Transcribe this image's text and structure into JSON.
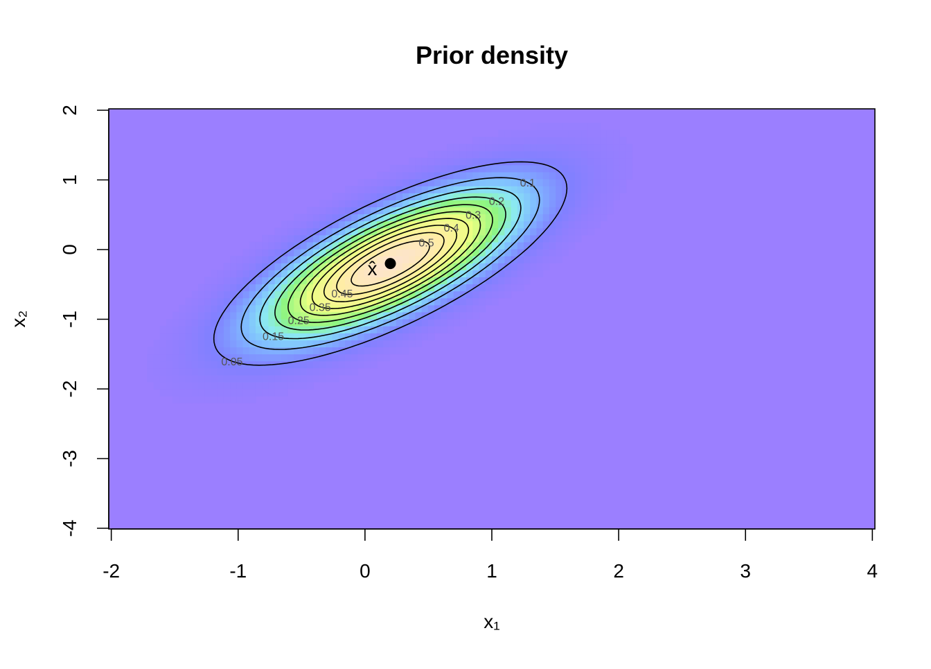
{
  "chart_data": {
    "type": "contour",
    "title": "Prior density",
    "xlabel": "x₁",
    "ylabel": "x₂",
    "xlim": [
      -2.02,
      4.02
    ],
    "ylim": [
      -4.01,
      2.02
    ],
    "xticks": [
      -2,
      -1,
      0,
      1,
      2,
      3,
      4
    ],
    "yticks": [
      -4,
      -3,
      -2,
      -1,
      0,
      1,
      2
    ],
    "mean": [
      0.2,
      -0.2
    ],
    "covariance": [
      [
        0.4,
        0.31
      ],
      [
        0.31,
        0.44
      ]
    ],
    "contour_levels": [
      0.05,
      0.1,
      0.15,
      0.2,
      0.25,
      0.3,
      0.35,
      0.4,
      0.45,
      0.5
    ],
    "point": {
      "x": 0.2,
      "y": -0.2,
      "color": "#000000"
    },
    "annotation": "x̂",
    "background_color": "#9b7fff"
  }
}
